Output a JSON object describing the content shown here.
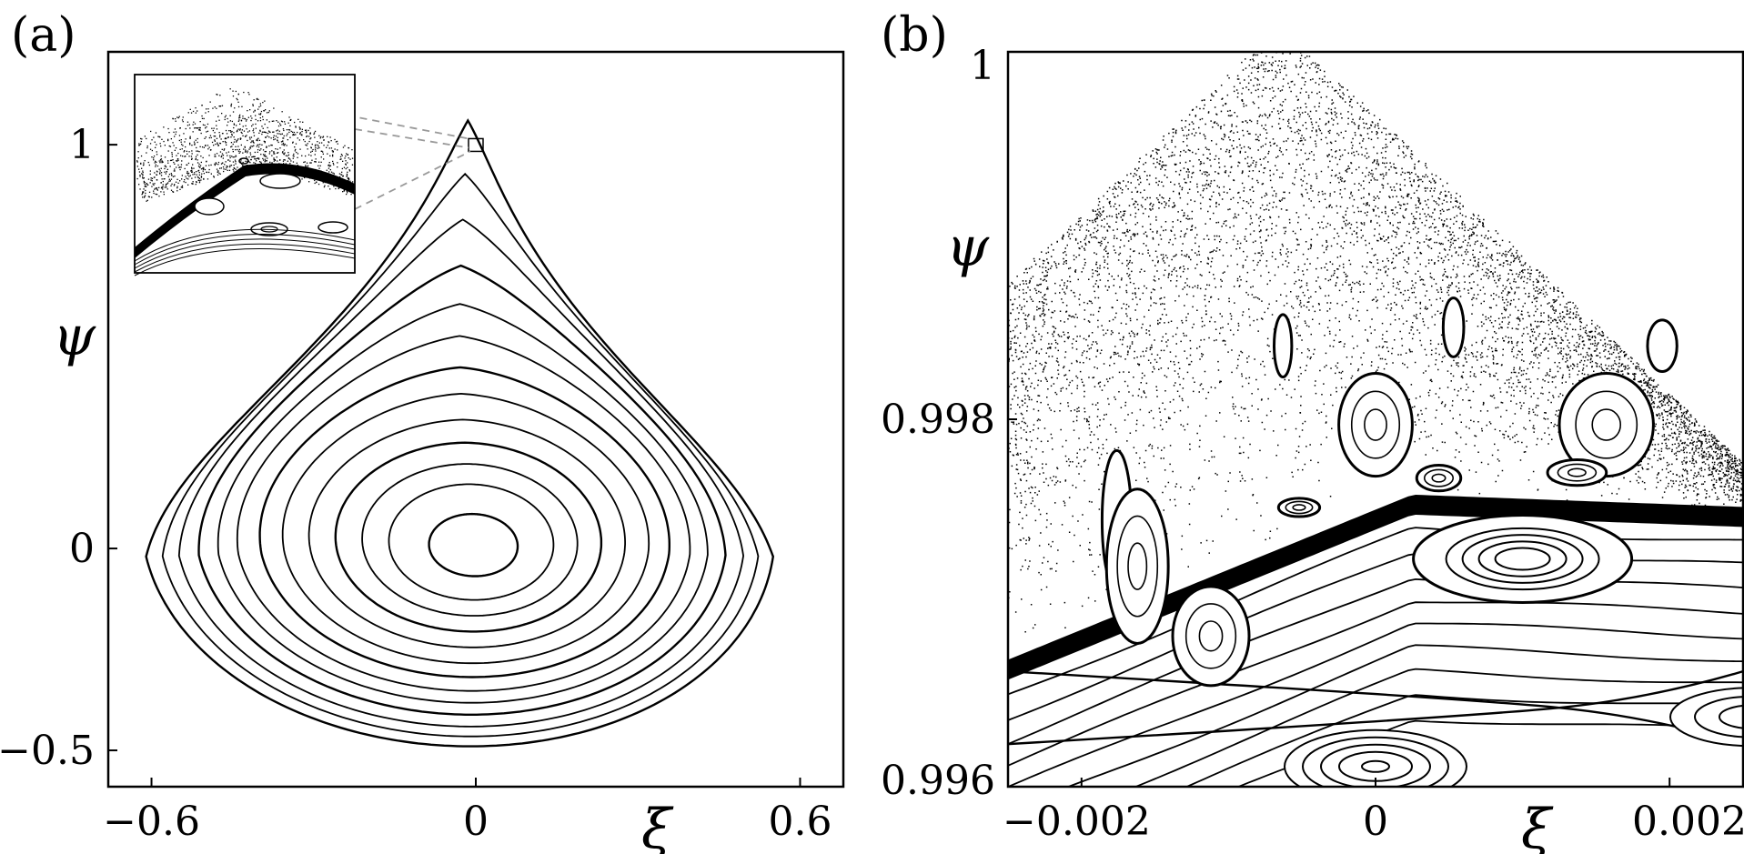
{
  "chart_data": [
    {
      "type": "scatter",
      "panel_label": "(a)",
      "xlabel": "ξ",
      "ylabel": "ψ",
      "xlim": [
        -0.68,
        0.68
      ],
      "ylim": [
        -0.59,
        1.23
      ],
      "x_ticks": [
        -0.6,
        0,
        0.6
      ],
      "x_tick_labels": [
        "−0.6",
        "0",
        "0.6"
      ],
      "y_ticks": [
        -0.5,
        0,
        1
      ],
      "y_tick_labels": [
        "−0.5",
        "0",
        "1"
      ],
      "center": [
        0,
        0
      ],
      "apex": [
        0,
        1
      ],
      "orbit_levels": [
        0.14,
        0.26,
        0.34,
        0.42,
        0.5,
        0.58,
        0.65,
        0.72,
        0.78,
        0.84,
        0.9,
        0.95,
        1.0
      ],
      "inset": {
        "zoom_target": [
          0,
          0.997
        ],
        "has_inset": true
      }
    },
    {
      "type": "scatter",
      "panel_label": "(b)",
      "xlabel": "ξ",
      "ylabel": "ψ",
      "xlim": [
        -0.0025,
        0.0025
      ],
      "ylim": [
        0.996,
        1.0
      ],
      "x_ticks": [
        -0.002,
        0,
        0.002
      ],
      "x_tick_labels": [
        "−0.002",
        "0",
        "0.002"
      ],
      "y_ticks": [
        0.996,
        0.998,
        1
      ],
      "y_tick_labels": [
        "0.996",
        "0.998",
        "1"
      ],
      "separatrix_y": 0.99755,
      "hyperbolic_point": [
        0.00125,
        0.99643
      ],
      "central_island": [
        0.001,
        0.99724
      ],
      "bottom_island": [
        0,
        0.99611
      ],
      "upper_islands": [
        {
          "x": 0.00053,
          "y": 0.9985,
          "rx": 7e-05,
          "ry": 0.00016
        },
        {
          "x": -0.00063,
          "y": 0.9984,
          "rx": 6e-05,
          "ry": 0.00017
        },
        {
          "x": 0.00195,
          "y": 0.9984,
          "rx": 0.0001,
          "ry": 0.00014
        },
        {
          "x": 0.0,
          "y": 0.99797,
          "rx": 0.00025,
          "ry": 0.00028
        },
        {
          "x": 0.00157,
          "y": 0.99797,
          "rx": 0.00032,
          "ry": 0.00028
        },
        {
          "x": 0.00043,
          "y": 0.99768,
          "rx": 0.00015,
          "ry": 7e-05
        },
        {
          "x": 0.00137,
          "y": 0.99771,
          "rx": 0.0002,
          "ry": 7e-05
        },
        {
          "x": -0.00052,
          "y": 0.99752,
          "rx": 0.00014,
          "ry": 5e-05
        },
        {
          "x": -0.00176,
          "y": 0.99745,
          "rx": 0.0001,
          "ry": 0.00038
        },
        {
          "x": -0.00162,
          "y": 0.9972,
          "rx": 0.00021,
          "ry": 0.00042
        },
        {
          "x": -0.00112,
          "y": 0.99682,
          "rx": 0.00026,
          "ry": 0.00027
        }
      ]
    }
  ]
}
